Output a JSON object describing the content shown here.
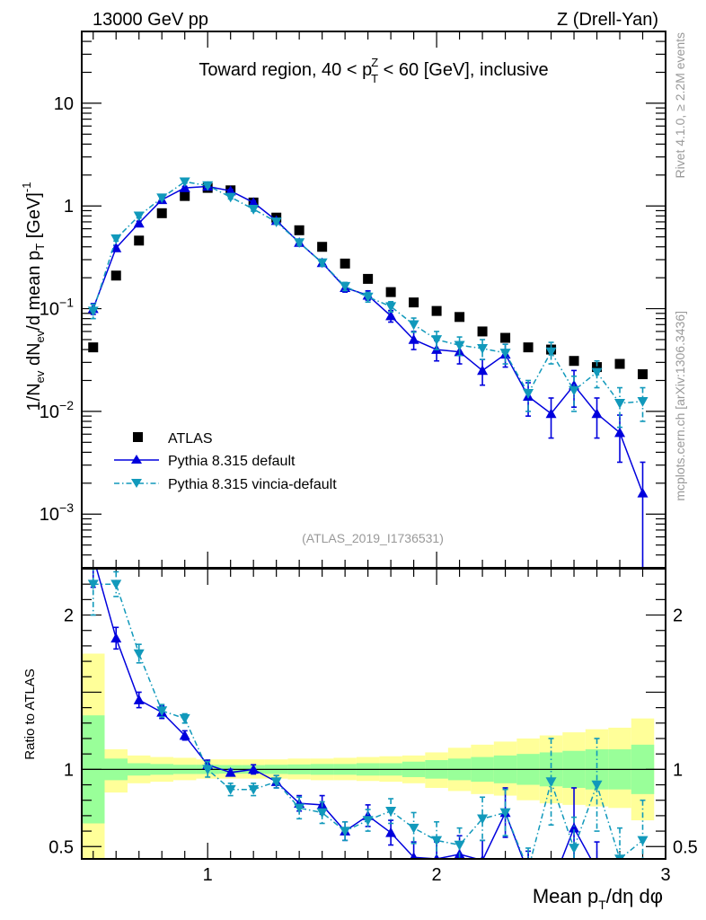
{
  "header": {
    "left_label": "13000 GeV pp",
    "right_label": "Z (Drell-Yan)"
  },
  "side_labels": {
    "rivet": "Rivet 4.1.0, ≥ 2.2M events",
    "mcplots": "mcplots.cern.ch [arXiv:1306.3436]"
  },
  "analysis_id": "(ATLAS_2019_I1736531)",
  "chart_data": [
    {
      "panel": "main",
      "type": "scatter",
      "title": "Toward region, 40 < p_T^Z < 60 [GeV], inclusive",
      "title_parts": {
        "pre": "Toward region, 40 < p",
        "sup": "Z",
        "sub": "T",
        "post": " < 60 [GeV], inclusive"
      },
      "ylabel": "1/N_ev dN_ev/d mean p_T [GeV]^-1",
      "yscale": "log",
      "ylim": [
        0.0003,
        50
      ],
      "xlim": [
        0.45,
        3.0
      ],
      "yticks": [
        {
          "value": 10,
          "label": "10"
        },
        {
          "value": 1,
          "label": "1"
        },
        {
          "value": 0.1,
          "label": "10^-1",
          "base": "10",
          "exp": "−1"
        },
        {
          "value": 0.01,
          "label": "10^-2",
          "base": "10",
          "exp": "−2"
        },
        {
          "value": 0.001,
          "label": "10^-3",
          "base": "10",
          "exp": "−3"
        }
      ],
      "legend": {
        "position": "lower-left",
        "entries": [
          "ATLAS",
          "Pythia 8.315 default",
          "Pythia 8.315 vincia-default"
        ]
      },
      "x": [
        0.5,
        0.6,
        0.7,
        0.8,
        0.9,
        1.0,
        1.1,
        1.2,
        1.3,
        1.4,
        1.5,
        1.6,
        1.7,
        1.8,
        1.9,
        2.0,
        2.1,
        2.2,
        2.3,
        2.4,
        2.5,
        2.6,
        2.7,
        2.8,
        2.9
      ],
      "series": [
        {
          "name": "ATLAS",
          "color": "#000000",
          "marker": "square",
          "values": [
            0.042,
            0.21,
            0.46,
            0.85,
            1.25,
            1.5,
            1.42,
            1.08,
            0.77,
            0.58,
            0.4,
            0.275,
            0.195,
            0.145,
            0.115,
            0.095,
            0.083,
            0.06,
            0.052,
            0.042,
            0.04,
            0.031,
            0.027,
            0.029,
            0.023
          ]
        },
        {
          "name": "Pythia 8.315 default",
          "color": "#0000dd",
          "marker": "triangle-up",
          "line": "solid",
          "values": [
            0.1,
            0.39,
            0.68,
            1.15,
            1.5,
            1.55,
            1.4,
            1.08,
            0.72,
            0.44,
            0.28,
            0.16,
            0.135,
            0.085,
            0.05,
            0.04,
            0.038,
            0.025,
            0.036,
            0.014,
            0.0095,
            0.018,
            0.0095,
            0.0062,
            0.0016
          ],
          "errors": [
            0.012,
            0.02,
            0.03,
            0.04,
            0.05,
            0.05,
            0.05,
            0.04,
            0.03,
            0.025,
            0.02,
            0.015,
            0.014,
            0.011,
            0.01,
            0.009,
            0.009,
            0.007,
            0.009,
            0.005,
            0.004,
            0.007,
            0.004,
            0.003,
            0.0016
          ]
        },
        {
          "name": "Pythia 8.315 vincia-default",
          "color": "#1199bb",
          "marker": "triangle-down",
          "line": "dashdot",
          "values": [
            0.095,
            0.48,
            0.8,
            1.2,
            1.72,
            1.58,
            1.22,
            0.93,
            0.7,
            0.44,
            0.28,
            0.165,
            0.13,
            0.105,
            0.07,
            0.05,
            0.044,
            0.041,
            0.037,
            0.015,
            0.038,
            0.016,
            0.024,
            0.012,
            0.0125
          ],
          "errors": [
            0.015,
            0.025,
            0.035,
            0.04,
            0.05,
            0.05,
            0.05,
            0.04,
            0.03,
            0.025,
            0.02,
            0.015,
            0.014,
            0.012,
            0.011,
            0.01,
            0.009,
            0.009,
            0.008,
            0.005,
            0.009,
            0.006,
            0.007,
            0.005,
            0.0045
          ]
        }
      ]
    },
    {
      "panel": "ratio",
      "type": "scatter",
      "ylabel": "Ratio to ATLAS",
      "xlabel": "Mean p_T/dη dφ",
      "xlabel_parts": {
        "pre": "Mean p",
        "sub": "T",
        "post": "/dη dφ"
      },
      "xlim": [
        0.45,
        3.0
      ],
      "ylim": [
        0.42,
        2.3
      ],
      "xticks": [
        {
          "value": 1,
          "label": "1"
        },
        {
          "value": 2,
          "label": "2"
        },
        {
          "value": 3,
          "label": "3"
        }
      ],
      "yticks": [
        {
          "value": 0.5,
          "label": "0.5"
        },
        {
          "value": 1,
          "label": "1"
        },
        {
          "value": 2,
          "label": "2"
        }
      ],
      "bin_edges": [
        0.45,
        0.55,
        0.65,
        0.75,
        0.85,
        0.95,
        1.05,
        1.15,
        1.25,
        1.35,
        1.45,
        1.55,
        1.65,
        1.75,
        1.85,
        1.95,
        2.05,
        2.15,
        2.25,
        2.35,
        2.45,
        2.55,
        2.65,
        2.75,
        2.85,
        2.95
      ],
      "band_inner": {
        "color": "#99ff99",
        "low": [
          0.65,
          0.93,
          0.96,
          0.965,
          0.97,
          0.97,
          0.972,
          0.972,
          0.97,
          0.968,
          0.965,
          0.965,
          0.96,
          0.96,
          0.95,
          0.94,
          0.93,
          0.92,
          0.91,
          0.9,
          0.89,
          0.88,
          0.87,
          0.87,
          0.84
        ],
        "high": [
          1.35,
          1.07,
          1.04,
          1.035,
          1.03,
          1.03,
          1.028,
          1.028,
          1.03,
          1.032,
          1.035,
          1.035,
          1.04,
          1.04,
          1.05,
          1.06,
          1.07,
          1.08,
          1.09,
          1.1,
          1.11,
          1.12,
          1.13,
          1.13,
          1.16
        ]
      },
      "band_outer": {
        "color": "#ffff99",
        "low": [
          0.42,
          0.85,
          0.91,
          0.92,
          0.93,
          0.94,
          0.94,
          0.94,
          0.94,
          0.935,
          0.93,
          0.93,
          0.925,
          0.92,
          0.91,
          0.88,
          0.86,
          0.84,
          0.83,
          0.8,
          0.78,
          0.77,
          0.76,
          0.75,
          0.67
        ],
        "high": [
          1.75,
          1.13,
          1.09,
          1.08,
          1.075,
          1.065,
          1.065,
          1.065,
          1.065,
          1.07,
          1.07,
          1.075,
          1.08,
          1.085,
          1.09,
          1.11,
          1.14,
          1.16,
          1.18,
          1.2,
          1.22,
          1.24,
          1.26,
          1.27,
          1.33
        ]
      },
      "x": [
        0.5,
        0.6,
        0.7,
        0.8,
        0.9,
        1.0,
        1.1,
        1.2,
        1.3,
        1.4,
        1.5,
        1.6,
        1.7,
        1.8,
        1.9,
        2.0,
        2.1,
        2.2,
        2.3,
        2.4,
        2.5,
        2.6,
        2.7,
        2.8,
        2.9
      ],
      "series": [
        {
          "name": "Pythia 8.315 default",
          "color": "#0000dd",
          "marker": "triangle-up",
          "line": "solid",
          "values": [
            2.38,
            1.85,
            1.45,
            1.37,
            1.22,
            1.03,
            0.98,
            1.0,
            0.92,
            0.78,
            0.77,
            0.6,
            0.7,
            0.59,
            0.43,
            0.42,
            0.45,
            0.41,
            0.72,
            0.33,
            0.24,
            0.62,
            0.35,
            0.21,
            0.07
          ],
          "errors": [
            0.2,
            0.07,
            0.05,
            0.04,
            0.03,
            0.03,
            0.02,
            0.03,
            0.04,
            0.05,
            0.06,
            0.06,
            0.07,
            0.08,
            0.1,
            0.11,
            0.12,
            0.13,
            0.16,
            0.14,
            0.14,
            0.26,
            0.18,
            0.14,
            0.12
          ]
        },
        {
          "name": "Pythia 8.315 vincia-default",
          "color": "#1199bb",
          "marker": "triangle-down",
          "line": "dashdot",
          "values": [
            2.2,
            2.2,
            1.75,
            1.38,
            1.33,
            1.0,
            0.87,
            0.87,
            0.92,
            0.75,
            0.72,
            0.6,
            0.67,
            0.73,
            0.62,
            0.54,
            0.51,
            0.68,
            0.72,
            0.35,
            0.92,
            0.49,
            0.9,
            0.42,
            0.54
          ],
          "errors": [
            0.2,
            0.08,
            0.06,
            0.04,
            0.03,
            0.05,
            0.04,
            0.04,
            0.04,
            0.07,
            0.07,
            0.06,
            0.07,
            0.08,
            0.1,
            0.12,
            0.11,
            0.14,
            0.15,
            0.14,
            0.28,
            0.2,
            0.3,
            0.2,
            0.26
          ]
        }
      ]
    }
  ]
}
